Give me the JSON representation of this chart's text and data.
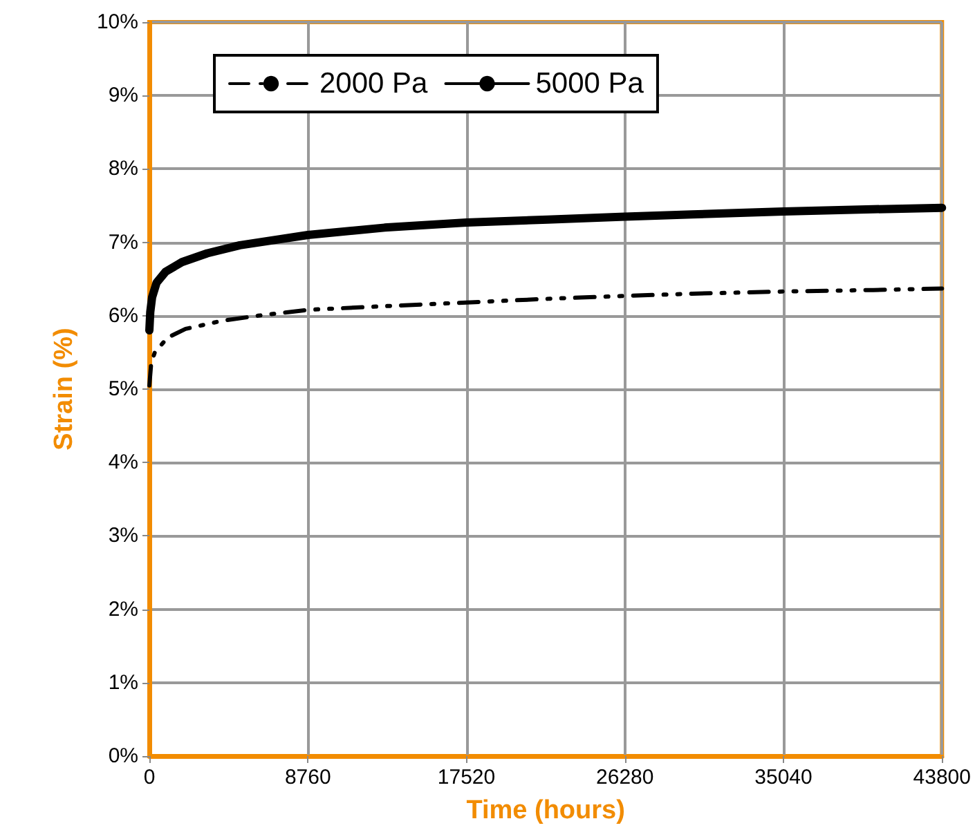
{
  "chart_data": {
    "type": "line",
    "xlabel": "Time (hours)",
    "ylabel": "Strain (%)",
    "xlim": [
      0,
      43800
    ],
    "xticks": [
      0,
      8760,
      17520,
      26280,
      35040,
      43800
    ],
    "ylim": [
      0,
      10
    ],
    "yticks": [
      {
        "value": 0,
        "label": "0%"
      },
      {
        "value": 1,
        "label": "1%"
      },
      {
        "value": 2,
        "label": "2%"
      },
      {
        "value": 3,
        "label": "3%"
      },
      {
        "value": 4,
        "label": "4%"
      },
      {
        "value": 5,
        "label": "5%"
      },
      {
        "value": 6,
        "label": "6%"
      },
      {
        "value": 7,
        "label": "7%"
      },
      {
        "value": 8,
        "label": "8%"
      },
      {
        "value": 9,
        "label": "9%"
      },
      {
        "value": 10,
        "label": "10%"
      }
    ],
    "grid": true,
    "legend": "top left",
    "marker": "none",
    "series": [
      {
        "name": "2000 Pa",
        "color": "#000000",
        "line_style": "dashed",
        "x": [
          0,
          100,
          300,
          1000,
          2000,
          4000,
          6000,
          8760,
          13000,
          17520,
          22000,
          26280,
          30000,
          35040,
          40000,
          43800
        ],
        "values": [
          5.05,
          5.35,
          5.5,
          5.7,
          5.82,
          5.93,
          6.0,
          6.08,
          6.13,
          6.18,
          6.23,
          6.27,
          6.3,
          6.33,
          6.35,
          6.37
        ]
      },
      {
        "name": "5000 Pa",
        "color": "#000000",
        "line_style": "solid",
        "x": [
          0,
          50,
          150,
          400,
          900,
          1800,
          3200,
          5000,
          8760,
          13000,
          17520,
          22000,
          26280,
          30000,
          35040,
          40000,
          43800
        ],
        "values": [
          5.8,
          6.05,
          6.25,
          6.45,
          6.6,
          6.73,
          6.85,
          6.96,
          7.1,
          7.2,
          7.27,
          7.31,
          7.35,
          7.38,
          7.42,
          7.45,
          7.47
        ]
      }
    ]
  }
}
